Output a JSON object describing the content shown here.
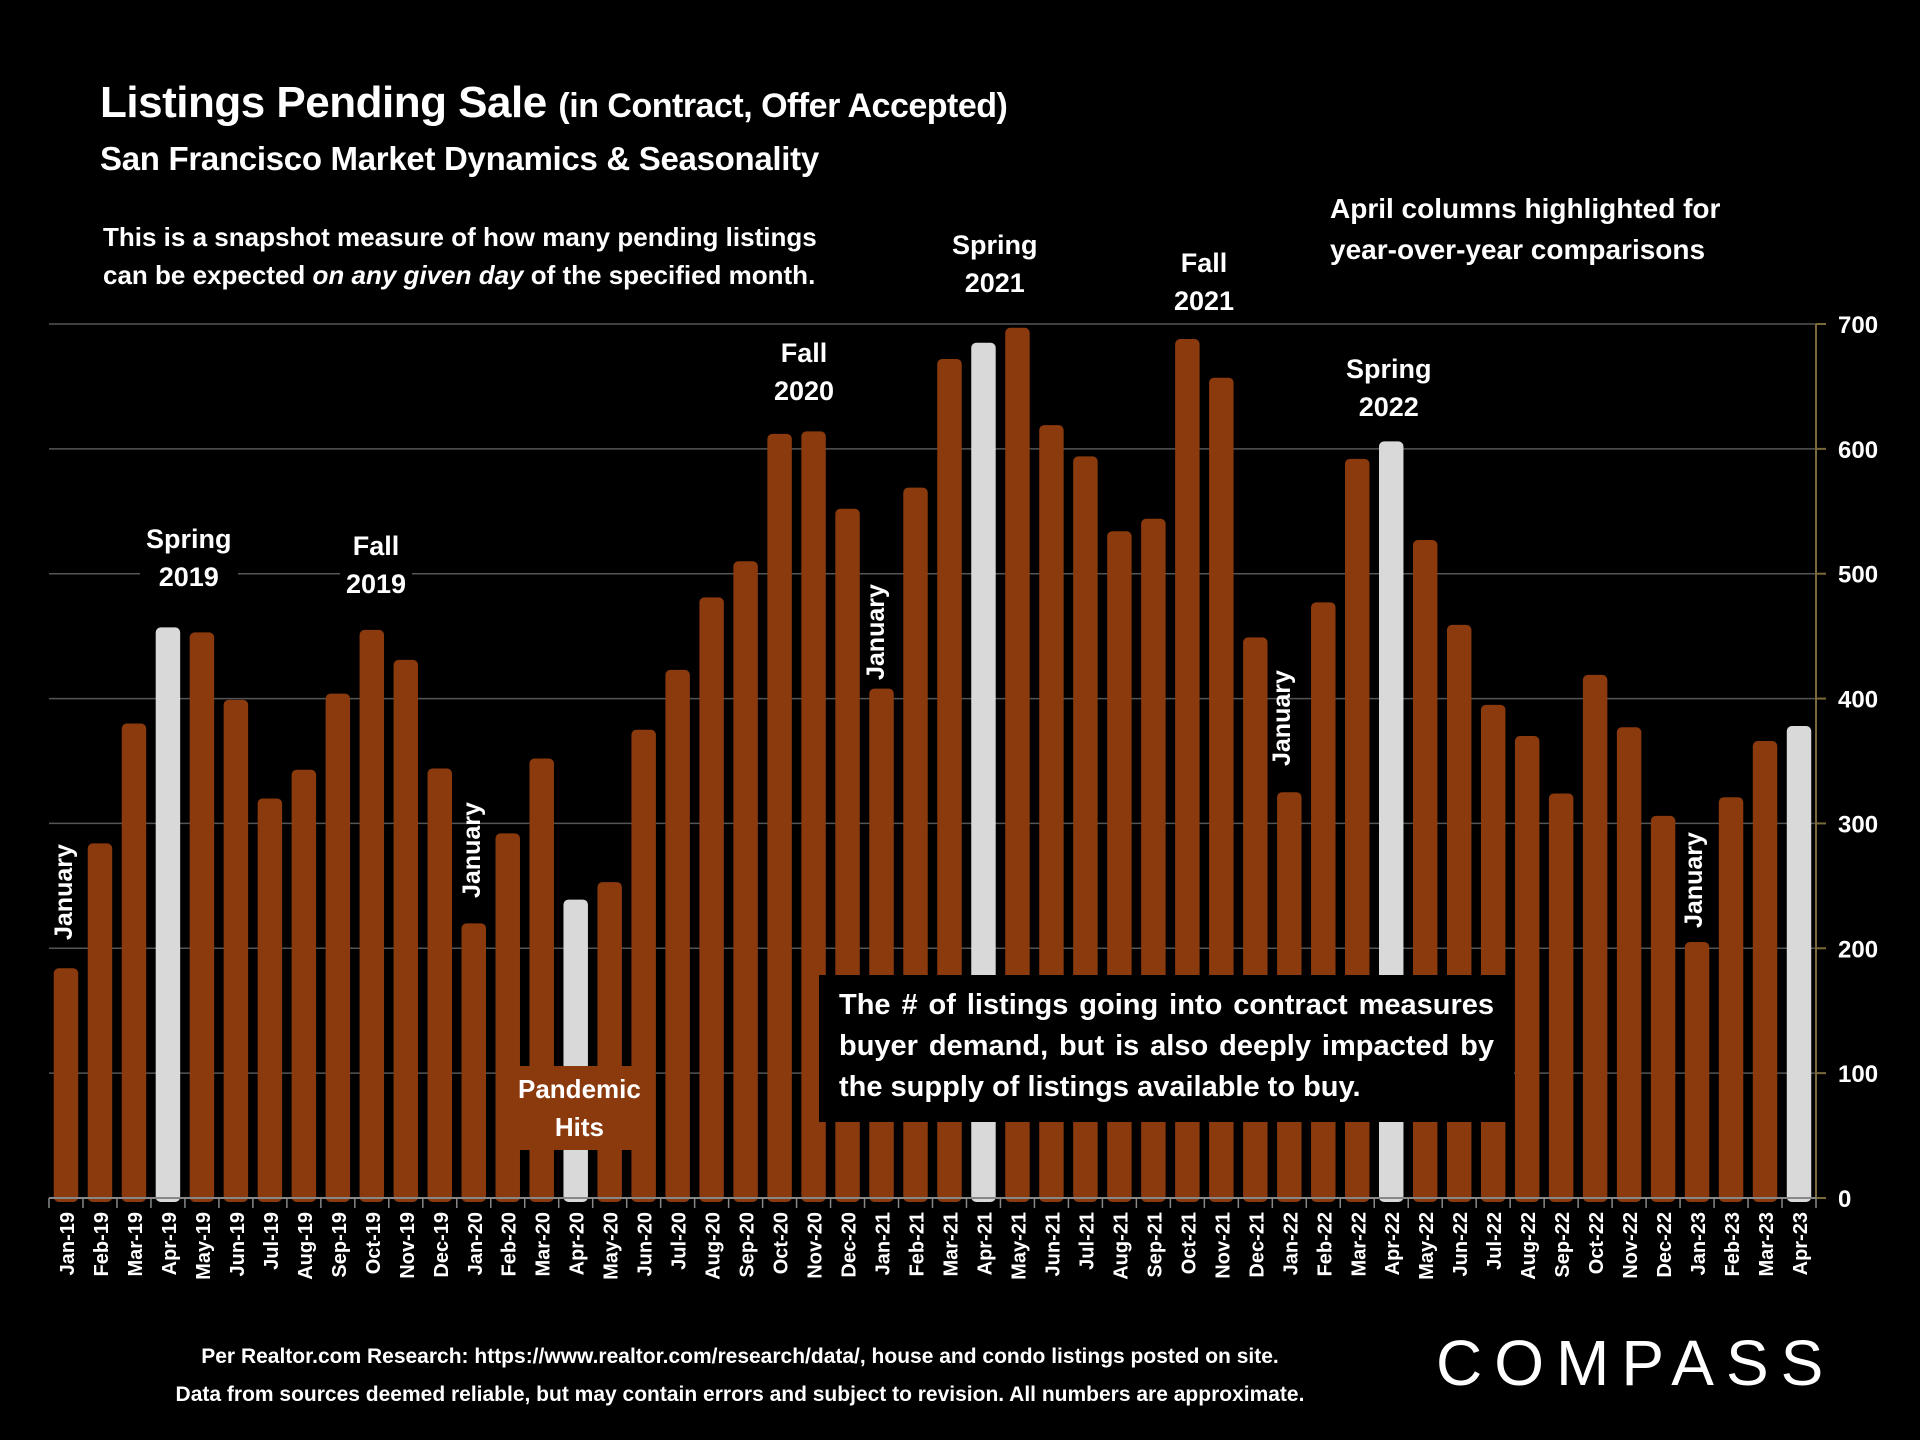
{
  "header": {
    "title_main": "Listings Pending Sale",
    "title_paren": "(in Contract, Offer Accepted)",
    "subtitle": "San Francisco Market Dynamics & Seasonality",
    "note_line1": "This is a snapshot measure of how many pending listings",
    "note_line2_pre": "can be expected ",
    "note_line2_em": "on any given day",
    "note_line2_post": " of the specified month.",
    "april_note_line1": "April columns highlighted for",
    "april_note_line2": "year-over-year comparisons"
  },
  "annotations": {
    "spring2019": [
      "Spring",
      "2019"
    ],
    "fall2019": [
      "Fall",
      "2019"
    ],
    "fall2020": [
      "Fall",
      "2020"
    ],
    "spring2021": [
      "Spring",
      "2021"
    ],
    "fall2021": [
      "Fall",
      "2021"
    ],
    "spring2022": [
      "Spring",
      "2022"
    ],
    "january": "January",
    "pandemic": [
      "Pandemic",
      "Hits"
    ],
    "callout": "The # of listings going into contract measures buyer demand, but is also deeply impacted by the supply of listings available to buy."
  },
  "footer": {
    "line1": "Per Realtor.com Research:  https://www.realtor.com/research/data/, house and condo listings posted on site.",
    "line2": "Data from sources deemed reliable, but may contain errors and subject to revision. All numbers are approximate.",
    "logo": "COMPASS"
  },
  "colors": {
    "bar": "#8B3A0E",
    "highlight": "#D9D9D9",
    "background": "#000000",
    "grid": "#555555",
    "axis": "#7A6A3A",
    "text": "#FFFFFF"
  },
  "chart_data": {
    "type": "bar",
    "title": "Listings Pending Sale (in Contract, Offer Accepted)",
    "subtitle": "San Francisco Market Dynamics & Seasonality",
    "xlabel": "",
    "ylabel": "",
    "ylim": [
      0,
      700
    ],
    "yticks": [
      0,
      100,
      200,
      300,
      400,
      500,
      600,
      700
    ],
    "y_axis_side": "right",
    "grid": true,
    "highlight_rule": "April columns highlighted",
    "categories": [
      "Jan-19",
      "Feb-19",
      "Mar-19",
      "Apr-19",
      "May-19",
      "Jun-19",
      "Jul-19",
      "Aug-19",
      "Sep-19",
      "Oct-19",
      "Nov-19",
      "Dec-19",
      "Jan-20",
      "Feb-20",
      "Mar-20",
      "Apr-20",
      "May-20",
      "Jun-20",
      "Jul-20",
      "Aug-20",
      "Sep-20",
      "Oct-20",
      "Nov-20",
      "Dec-20",
      "Jan-21",
      "Feb-21",
      "Mar-21",
      "Apr-21",
      "May-21",
      "Jun-21",
      "Jul-21",
      "Aug-21",
      "Sep-21",
      "Oct-21",
      "Nov-21",
      "Dec-21",
      "Jan-22",
      "Feb-22",
      "Mar-22",
      "Apr-22",
      "May-22",
      "Jun-22",
      "Jul-22",
      "Aug-22",
      "Sep-22",
      "Oct-22",
      "Nov-22",
      "Dec-22",
      "Jan-23",
      "Feb-23",
      "Mar-23",
      "Apr-23"
    ],
    "values": [
      184,
      284,
      380,
      457,
      453,
      399,
      320,
      343,
      404,
      455,
      431,
      344,
      220,
      292,
      352,
      239,
      253,
      375,
      423,
      481,
      510,
      612,
      614,
      552,
      408,
      569,
      672,
      685,
      697,
      619,
      594,
      534,
      544,
      688,
      657,
      449,
      325,
      477,
      592,
      606,
      527,
      459,
      395,
      370,
      324,
      419,
      377,
      306,
      205,
      321,
      366,
      378
    ],
    "highlighted": [
      "Apr-19",
      "Apr-20",
      "Apr-21",
      "Apr-22",
      "Apr-23"
    ]
  }
}
